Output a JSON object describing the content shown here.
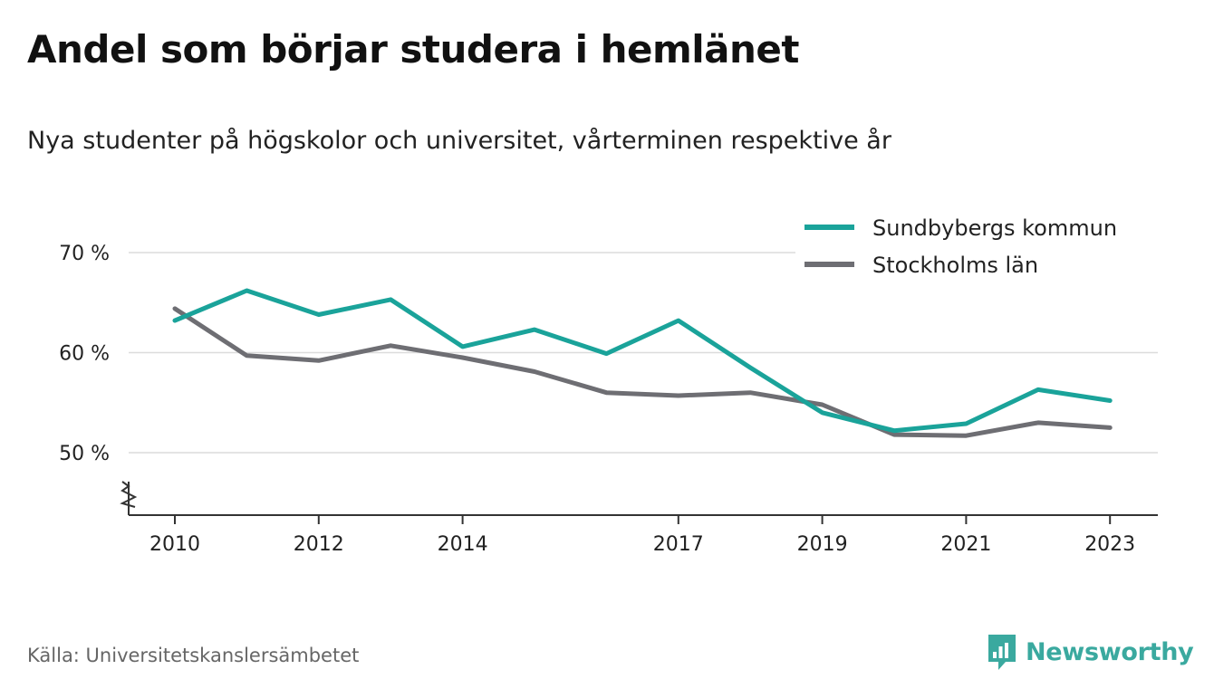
{
  "title": "Andel som börjar studera i hemlänet",
  "subtitle": "Nya studenter på högskolor och universitet, vårterminen respektive år",
  "source": "Källa: Universitetskanslersämbetet",
  "brand": {
    "name": "Newsworthy",
    "icon": "newsworthy-logo-icon",
    "color": "#3aa99f"
  },
  "chart_data": {
    "type": "line",
    "title": "Andel som börjar studera i hemlänet",
    "subtitle": "Nya studenter på högskolor och universitet, vårterminen respektive år",
    "x": [
      2010,
      2011,
      2012,
      2013,
      2014,
      2015,
      2016,
      2017,
      2018,
      2019,
      2020,
      2021,
      2022,
      2023
    ],
    "x_ticks": [
      2010,
      2012,
      2014,
      2017,
      2019,
      2021,
      2023
    ],
    "x_tick_labels": [
      "2010",
      "2012",
      "2014",
      "2017",
      "2019",
      "2021",
      "2023"
    ],
    "y_ticks": [
      50,
      60,
      70
    ],
    "y_tick_labels": [
      "50 %",
      "60 %",
      "70 %"
    ],
    "ylim": [
      44,
      70
    ],
    "y_axis_break": true,
    "grid": true,
    "legend_position": "top-right",
    "series": [
      {
        "name": "Sundbybergs kommun",
        "color": "#1aa39a",
        "values": [
          63.2,
          66.2,
          63.8,
          65.3,
          60.6,
          62.3,
          59.9,
          63.2,
          58.5,
          54.0,
          52.2,
          52.9,
          56.3,
          55.2
        ]
      },
      {
        "name": "Stockholms län",
        "color": "#6e6e73",
        "values": [
          64.4,
          59.7,
          59.2,
          60.7,
          59.5,
          58.1,
          56.0,
          55.7,
          56.0,
          54.8,
          51.8,
          51.7,
          53.0,
          52.5
        ]
      }
    ]
  }
}
